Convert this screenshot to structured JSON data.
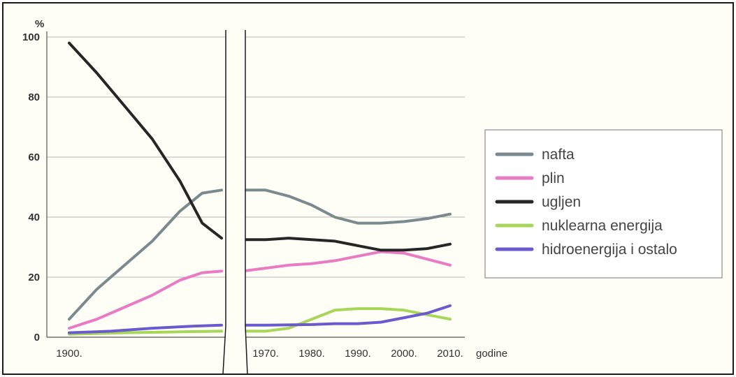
{
  "chart_data": {
    "type": "line",
    "title": "",
    "ylabel": "%",
    "xlabel": "godine",
    "ylim": [
      0,
      100
    ],
    "y_ticks": [
      "0",
      "20",
      "40",
      "60",
      "80",
      "100"
    ],
    "x_tick_labels": [
      "1900.",
      "1970.",
      "1980.",
      "1990.",
      "2000.",
      "2010."
    ],
    "x_axis_unit": "godine",
    "axis_break_between": [
      "1900.",
      "1970."
    ],
    "series": [
      {
        "name": "nafta",
        "color": "#7a8a8e",
        "segments": [
          [
            [
              1900,
              6
            ],
            [
              1910,
              16
            ],
            [
              1920,
              24
            ],
            [
              1930,
              32
            ],
            [
              1940,
              42
            ],
            [
              1948,
              48
            ],
            [
              1955,
              49
            ]
          ],
          [
            [
              1965,
              49
            ],
            [
              1970,
              49
            ],
            [
              1975,
              47
            ],
            [
              1980,
              44
            ],
            [
              1985,
              40
            ],
            [
              1990,
              38
            ],
            [
              1995,
              38
            ],
            [
              2000,
              38.5
            ],
            [
              2005,
              39.5
            ],
            [
              2010,
              41
            ]
          ]
        ]
      },
      {
        "name": "plin",
        "color": "#e87bc3",
        "segments": [
          [
            [
              1900,
              3
            ],
            [
              1910,
              6
            ],
            [
              1920,
              10
            ],
            [
              1930,
              14
            ],
            [
              1940,
              19
            ],
            [
              1948,
              21.5
            ],
            [
              1955,
              22
            ]
          ],
          [
            [
              1965,
              22
            ],
            [
              1970,
              23
            ],
            [
              1975,
              24
            ],
            [
              1980,
              24.5
            ],
            [
              1985,
              25.5
            ],
            [
              1990,
              27
            ],
            [
              1995,
              28.5
            ],
            [
              2000,
              28
            ],
            [
              2005,
              26
            ],
            [
              2010,
              24
            ]
          ]
        ]
      },
      {
        "name": "ugljen",
        "color": "#262626",
        "segments": [
          [
            [
              1900,
              98
            ],
            [
              1910,
              88
            ],
            [
              1920,
              77
            ],
            [
              1930,
              66
            ],
            [
              1940,
              52
            ],
            [
              1948,
              38
            ],
            [
              1955,
              33
            ]
          ],
          [
            [
              1965,
              32.5
            ],
            [
              1970,
              32.5
            ],
            [
              1975,
              33
            ],
            [
              1980,
              32.5
            ],
            [
              1985,
              32
            ],
            [
              1990,
              30.5
            ],
            [
              1995,
              29
            ],
            [
              2000,
              29
            ],
            [
              2005,
              29.5
            ],
            [
              2010,
              31
            ]
          ]
        ]
      },
      {
        "name": "nuklearna energija",
        "color": "#a8d65a",
        "segments": [
          [
            [
              1900,
              1
            ],
            [
              1920,
              1.5
            ],
            [
              1940,
              1.8
            ],
            [
              1955,
              2
            ]
          ],
          [
            [
              1965,
              2
            ],
            [
              1970,
              2
            ],
            [
              1975,
              3
            ],
            [
              1980,
              6
            ],
            [
              1985,
              9
            ],
            [
              1990,
              9.5
            ],
            [
              1995,
              9.5
            ],
            [
              2000,
              9
            ],
            [
              2005,
              7.5
            ],
            [
              2010,
              6
            ]
          ]
        ]
      },
      {
        "name": "hidroenergija i ostalo",
        "color": "#6a5acd",
        "segments": [
          [
            [
              1900,
              1.5
            ],
            [
              1915,
              2
            ],
            [
              1930,
              3
            ],
            [
              1945,
              3.7
            ],
            [
              1955,
              4
            ]
          ],
          [
            [
              1965,
              4
            ],
            [
              1970,
              4
            ],
            [
              1980,
              4.2
            ],
            [
              1985,
              4.5
            ],
            [
              1990,
              4.5
            ],
            [
              1995,
              5
            ],
            [
              2000,
              6.5
            ],
            [
              2005,
              8
            ],
            [
              2010,
              10.5
            ]
          ]
        ]
      }
    ],
    "legend": [
      "nafta",
      "plin",
      "ugljen",
      "nuklearna energija",
      "hidroenergija i ostalo"
    ]
  }
}
